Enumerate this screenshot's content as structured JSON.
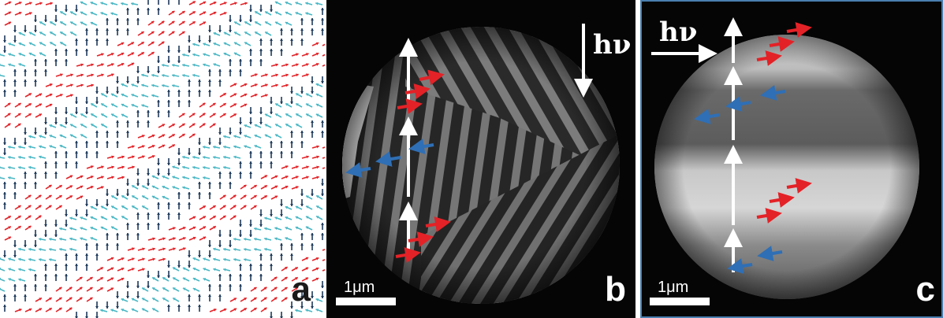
{
  "panels": {
    "a": {
      "label": "a"
    },
    "b": {
      "label": "b",
      "scale_label": "1μm",
      "photon_label": "hν"
    },
    "c": {
      "label": "c",
      "scale_label": "1μm",
      "photon_label": "hν"
    }
  },
  "colors": {
    "red": "#e32227",
    "cyan": "#49b7c4",
    "navy": "#1e3a5a",
    "blue": "#2f6fb5",
    "white": "#ffffff",
    "frame_c": "#4a7fb0"
  },
  "icons": [
    "spin-arrow-red-icon",
    "spin-arrow-blue-icon",
    "photon-arrow-icon",
    "domain-wall-arrow-icon"
  ]
}
